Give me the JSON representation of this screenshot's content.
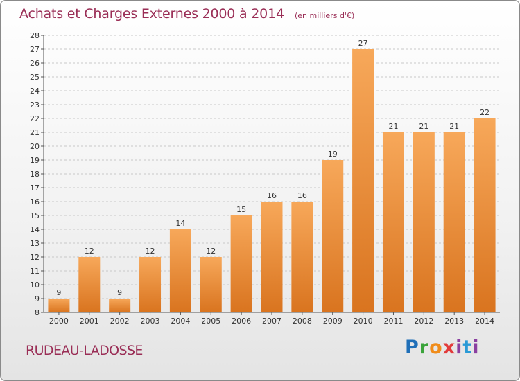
{
  "header": {
    "title": "Achats et Charges Externes 2000 à 2014",
    "unit_note": "(en milliers d'€)"
  },
  "footer": {
    "commune": "RUDEAU-LADOSSE",
    "logo_text": "Proxiti"
  },
  "colors": {
    "bar_top": "#f7a85a",
    "bar_bottom": "#d9741f",
    "title": "#9a2e56",
    "axis": "#555555"
  },
  "chart_data": {
    "type": "bar",
    "categories": [
      "2000",
      "2001",
      "2002",
      "2003",
      "2004",
      "2005",
      "2006",
      "2007",
      "2008",
      "2009",
      "2010",
      "2011",
      "2012",
      "2013",
      "2014"
    ],
    "values": [
      9,
      12,
      9,
      12,
      14,
      12,
      15,
      16,
      16,
      19,
      27,
      21,
      21,
      21,
      22
    ],
    "data_labels": [
      "9",
      "12",
      "9",
      "12",
      "14",
      "12",
      "15",
      "16",
      "16",
      "19",
      "27",
      "21",
      "21",
      "21",
      "22"
    ],
    "ylim": [
      8,
      28
    ],
    "yticks": [
      "8",
      "9",
      "10",
      "11",
      "12",
      "13",
      "14",
      "15",
      "16",
      "17",
      "18",
      "19",
      "20",
      "21",
      "22",
      "23",
      "24",
      "25",
      "26",
      "27",
      "28"
    ],
    "grid": "dashed horizontal",
    "legend": "none"
  }
}
